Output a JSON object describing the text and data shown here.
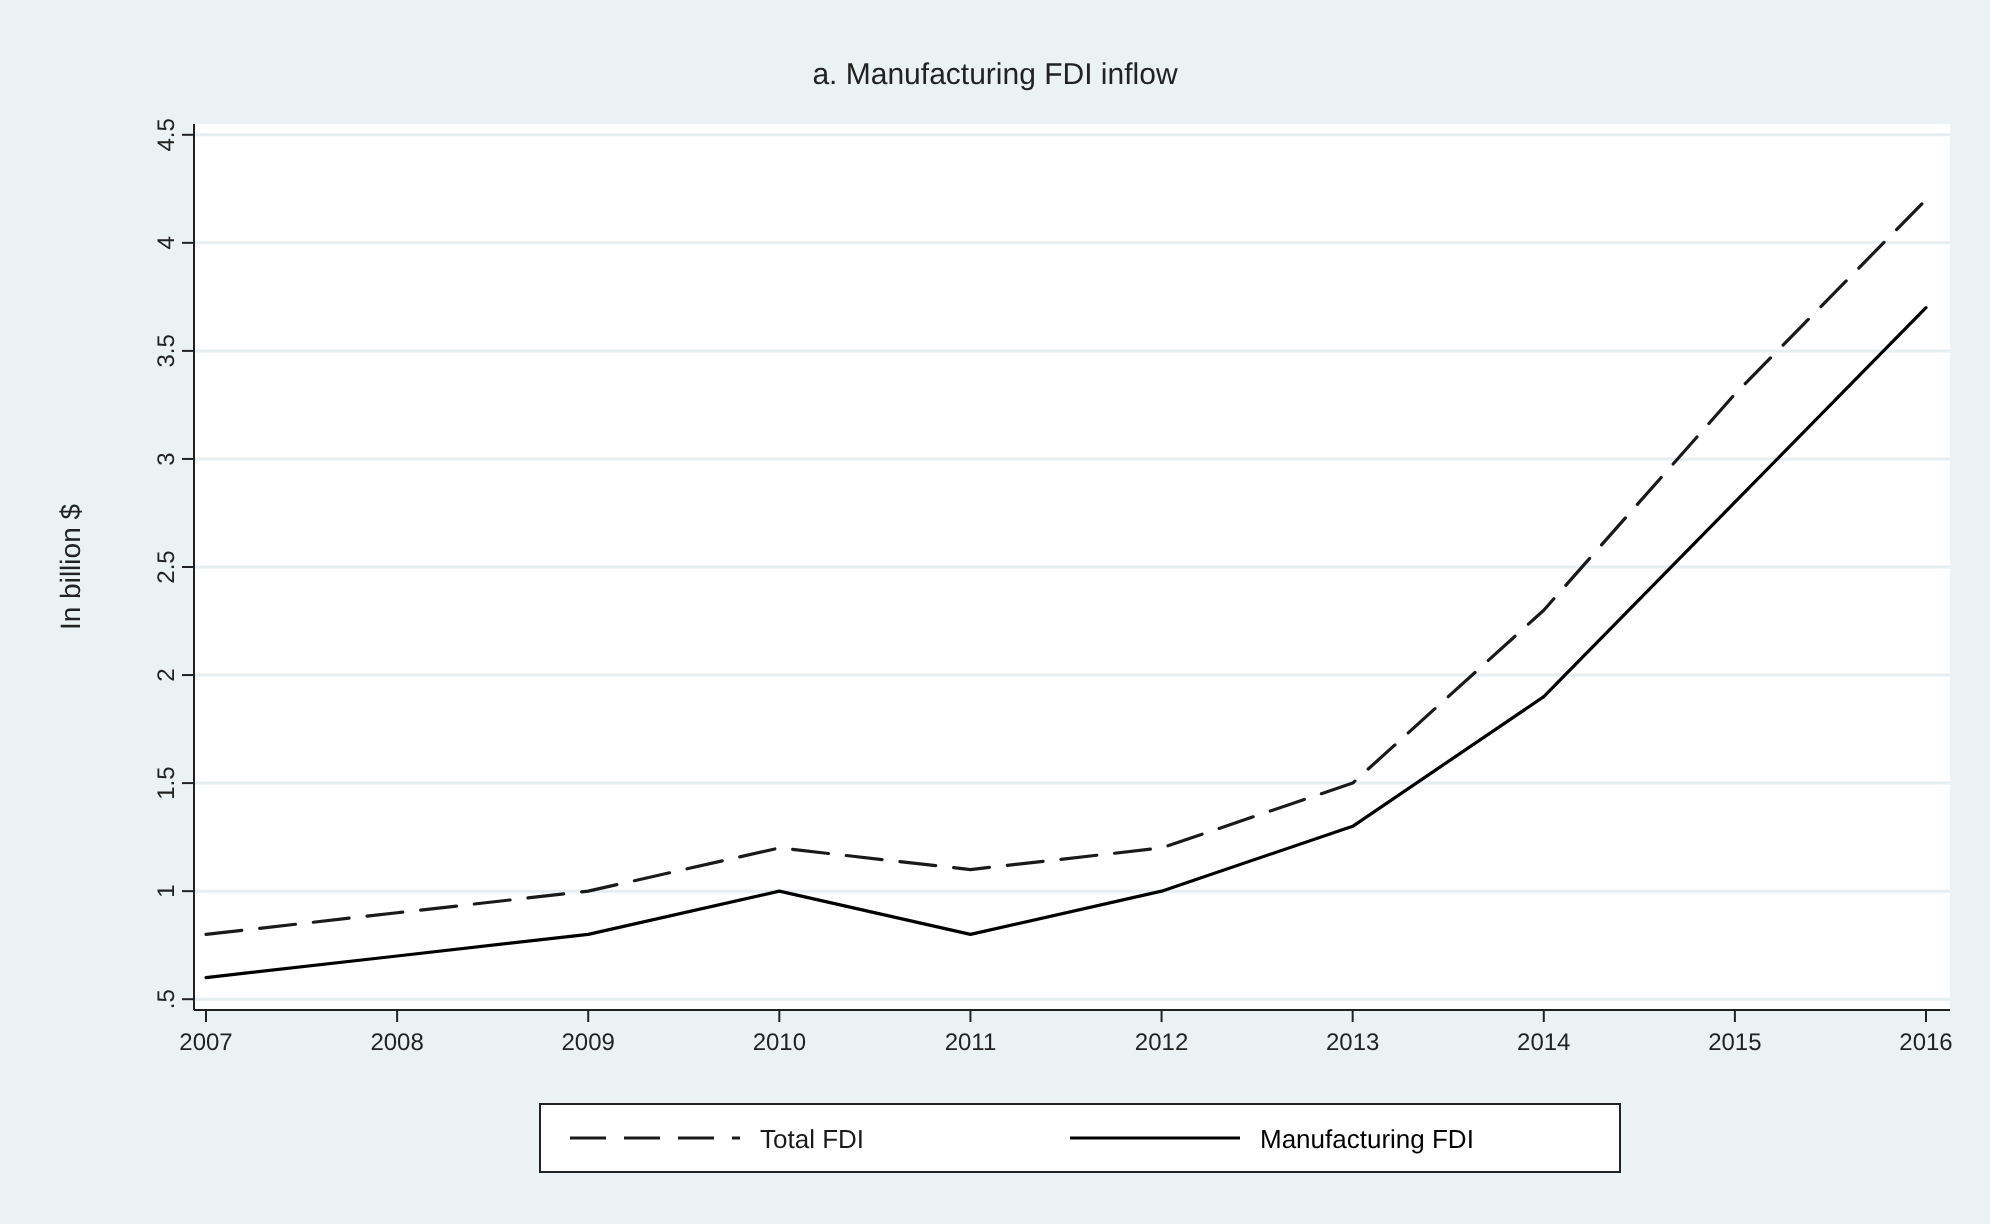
{
  "chart_data": {
    "type": "line",
    "title": "a. Manufacturing FDI inflow",
    "ylabel": "In billion $",
    "categories": [
      "2007",
      "2008",
      "2009",
      "2010",
      "2011",
      "2012",
      "2013",
      "2014",
      "2015",
      "2016"
    ],
    "series": [
      {
        "name": "Total FDI",
        "color": "#1a1a1a",
        "line_style": "dashed",
        "values": [
          0.8,
          0.9,
          1.0,
          1.2,
          1.1,
          1.2,
          1.5,
          2.3,
          3.3,
          4.2
        ]
      },
      {
        "name": "Manufacturing FDI",
        "color": "#000000",
        "line_style": "solid",
        "values": [
          0.6,
          0.7,
          0.8,
          1.0,
          0.8,
          1.0,
          1.3,
          1.9,
          2.8,
          3.7
        ]
      }
    ],
    "ylim": [
      0.45,
      4.55
    ],
    "yticks": [
      {
        "value": 0.5,
        "label": ".5"
      },
      1,
      1.5,
      2,
      2.5,
      3,
      3.5,
      4,
      4.5
    ],
    "grid": "y",
    "legend": "bottom"
  }
}
